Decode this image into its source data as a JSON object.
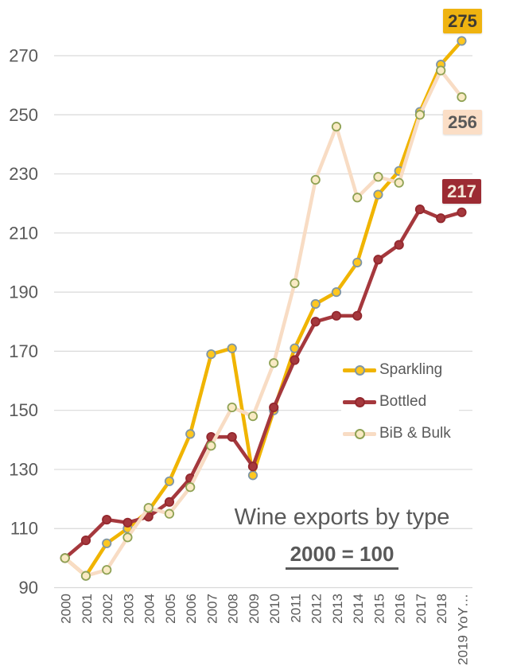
{
  "page": {
    "background": "#FFFFFF",
    "text_color": "#595959",
    "gridline_color": "#D9D9D9"
  },
  "chart_data": {
    "type": "line",
    "title": "Wine exports by type",
    "subtitle": "2000 = 100",
    "categories": [
      "2000",
      "2001",
      "2002",
      "2003",
      "2004",
      "2005",
      "2006",
      "2007",
      "2008",
      "2009",
      "2010",
      "2011",
      "2012",
      "2013",
      "2014",
      "2015",
      "2016",
      "2017",
      "2018",
      "2019 YoY…"
    ],
    "y_ticks": [
      90,
      110,
      130,
      150,
      170,
      190,
      210,
      230,
      250,
      270
    ],
    "ylim": [
      90,
      282
    ],
    "grid": true,
    "legend_position": "middle-right",
    "legend": [
      "Sparkling",
      "Bottled",
      "BiB & Bulk"
    ],
    "series": [
      {
        "name": "Sparkling",
        "color": "#F0B400",
        "line_width": 4.5,
        "marker_fill": "#FFC71F",
        "marker_stroke": "#7F96A6",
        "values": [
          100,
          94,
          105,
          110,
          116,
          126,
          142,
          169,
          171,
          128,
          150,
          171,
          186,
          190,
          200,
          223,
          231,
          251,
          267,
          275
        ],
        "end_label": "275",
        "end_label_bg": "#EFB310",
        "end_label_color": "#3E3A33"
      },
      {
        "name": "Bottled",
        "color": "#A5383D",
        "line_width": 4.5,
        "marker_fill": "#A5383D",
        "marker_stroke": "#93282E",
        "values": [
          100,
          106,
          113,
          112,
          114,
          119,
          127,
          141,
          141,
          131,
          151,
          167,
          180,
          182,
          182,
          201,
          206,
          218,
          215,
          217
        ],
        "end_label": "217",
        "end_label_bg": "#9C2B33",
        "end_label_color": "#F4E8DA"
      },
      {
        "name": "BiB & Bulk",
        "color": "#F8DCC4",
        "line_width": 4.5,
        "marker_fill": "#F9EAC3",
        "marker_stroke": "#8FA254",
        "values": [
          100,
          94,
          96,
          107,
          117,
          115,
          124,
          138,
          151,
          148,
          166,
          193,
          228,
          246,
          222,
          229,
          227,
          250,
          265,
          256
        ],
        "end_label": "256",
        "end_label_bg": "#FBDEC6",
        "end_label_color": "#595959"
      }
    ]
  }
}
